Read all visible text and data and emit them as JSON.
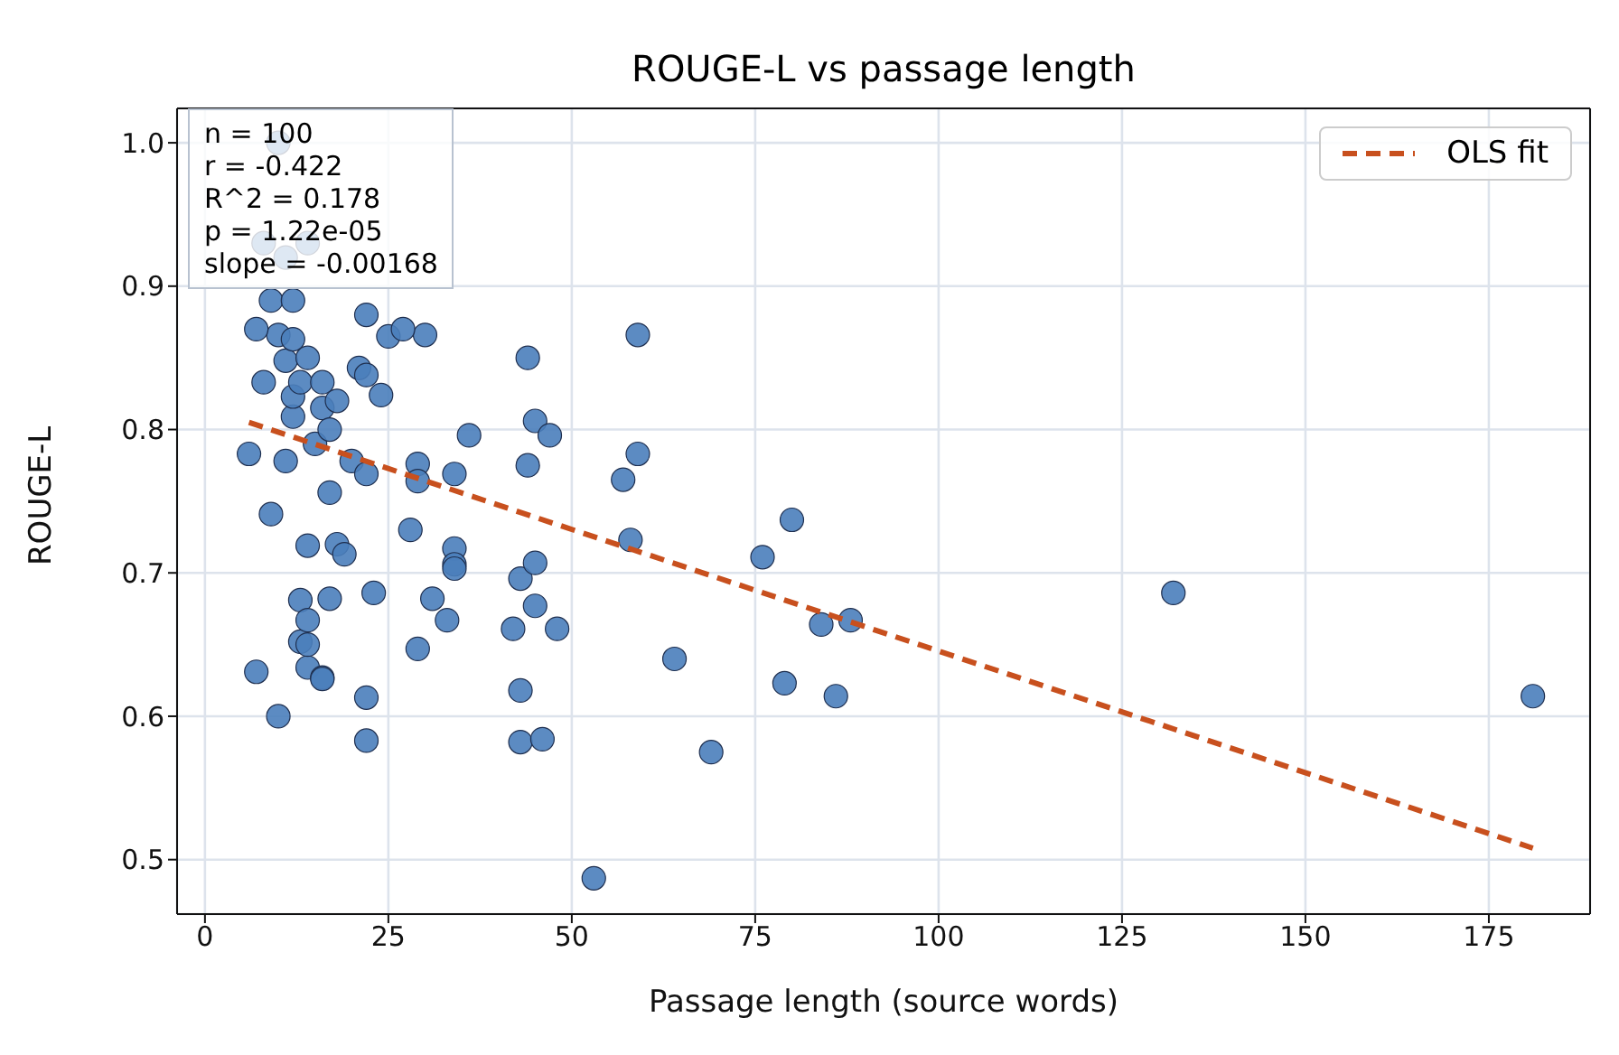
{
  "chart_data": {
    "type": "scatter",
    "title": "ROUGE-L vs passage length",
    "xlabel": "Passage length (source words)",
    "ylabel": "ROUGE-L",
    "xlim": [
      -3.8,
      188.8
    ],
    "xticks": [
      0,
      25,
      50,
      75,
      100,
      125,
      150,
      175
    ],
    "ylim": [
      0.462,
      1.024
    ],
    "yticks": [
      {
        "value": 0.5,
        "label": "0.5"
      },
      {
        "value": 0.6,
        "label": "0.6"
      },
      {
        "value": 0.7,
        "label": "0.7"
      },
      {
        "value": 0.8,
        "label": "0.8"
      },
      {
        "value": 0.9,
        "label": "0.9"
      },
      {
        "value": 1.0,
        "label": "1.0"
      }
    ],
    "grid": true,
    "legend": "top right",
    "marker": "circle",
    "annotations": [
      "n = 100\nr = -0.422\nR^2 = 0.178\np = 1.22e-05\nslope = -0.00168"
    ],
    "series": [
      {
        "color": "#4a7ebb",
        "x": [
          6,
          7,
          8,
          9,
          10,
          10,
          11,
          11,
          12,
          12,
          12,
          13,
          13,
          13,
          14,
          14,
          14,
          14,
          14,
          15,
          16,
          16,
          16,
          16,
          17,
          17,
          17,
          18,
          18,
          19,
          20,
          21,
          22,
          22,
          22,
          22,
          23,
          24,
          25,
          28,
          29,
          29,
          29,
          30,
          31,
          33,
          34,
          34,
          34,
          34,
          36,
          42,
          43,
          43,
          43,
          44,
          44,
          45,
          45,
          45,
          46,
          47,
          48,
          53,
          57,
          58,
          59,
          59,
          64,
          69,
          76,
          79,
          80,
          84,
          86,
          88,
          132,
          181,
          10,
          8,
          11,
          14,
          9,
          12,
          22,
          27,
          7
        ],
        "values": [
          0.783,
          0.631,
          0.833,
          0.741,
          0.6,
          0.866,
          0.778,
          0.848,
          0.863,
          0.809,
          0.823,
          0.681,
          0.652,
          0.833,
          0.667,
          0.634,
          0.719,
          0.85,
          0.65,
          0.79,
          0.627,
          0.833,
          0.815,
          0.626,
          0.682,
          0.8,
          0.756,
          0.72,
          0.82,
          0.713,
          0.778,
          0.843,
          0.769,
          0.838,
          0.613,
          0.583,
          0.686,
          0.824,
          0.865,
          0.73,
          0.776,
          0.764,
          0.647,
          0.866,
          0.682,
          0.667,
          0.769,
          0.717,
          0.706,
          0.703,
          0.796,
          0.661,
          0.696,
          0.618,
          0.582,
          0.85,
          0.775,
          0.806,
          0.707,
          0.677,
          0.584,
          0.796,
          0.661,
          0.487,
          0.765,
          0.723,
          0.866,
          0.783,
          0.64,
          0.575,
          0.711,
          0.623,
          0.737,
          0.664,
          0.614,
          0.667,
          0.686,
          0.614,
          1.0,
          0.93,
          0.92,
          0.93,
          0.89,
          0.89,
          0.88,
          0.87,
          0.87
        ]
      },
      {
        "type": "line",
        "name": "OLS fit",
        "color": "#c8501e",
        "line_style": "dashed",
        "marker": "none",
        "x": [
          6,
          181
        ],
        "values": [
          0.805,
          0.508
        ]
      }
    ]
  }
}
